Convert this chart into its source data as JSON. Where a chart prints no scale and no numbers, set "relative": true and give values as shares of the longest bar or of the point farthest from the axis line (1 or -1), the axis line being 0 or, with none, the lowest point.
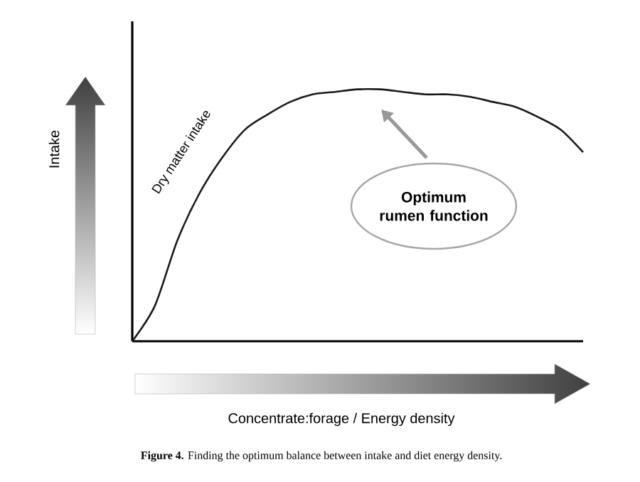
{
  "chart_data": {
    "type": "line",
    "relative": true,
    "tick_labels": false,
    "color": "#1a1a1a",
    "categories": [
      null,
      null,
      null,
      null,
      null,
      null,
      null,
      null,
      null,
      null,
      null,
      null,
      null,
      null,
      null,
      null,
      null,
      null,
      null,
      null,
      null
    ],
    "values": [
      0,
      0.14,
      0.4,
      0.59,
      0.73,
      0.84,
      0.9,
      0.95,
      0.98,
      0.99,
      1,
      1,
      0.99,
      0.98,
      0.98,
      0.97,
      0.95,
      0.93,
      0.89,
      0.84,
      0.75
    ],
    "annotations": [
      "Intake",
      "Dry matter intake",
      "Optimum rumen function",
      "Concentrate:forage / Energy density",
      "**Figure 4.** Finding the optimum balance between intake and diet energy density."
    ]
  }
}
